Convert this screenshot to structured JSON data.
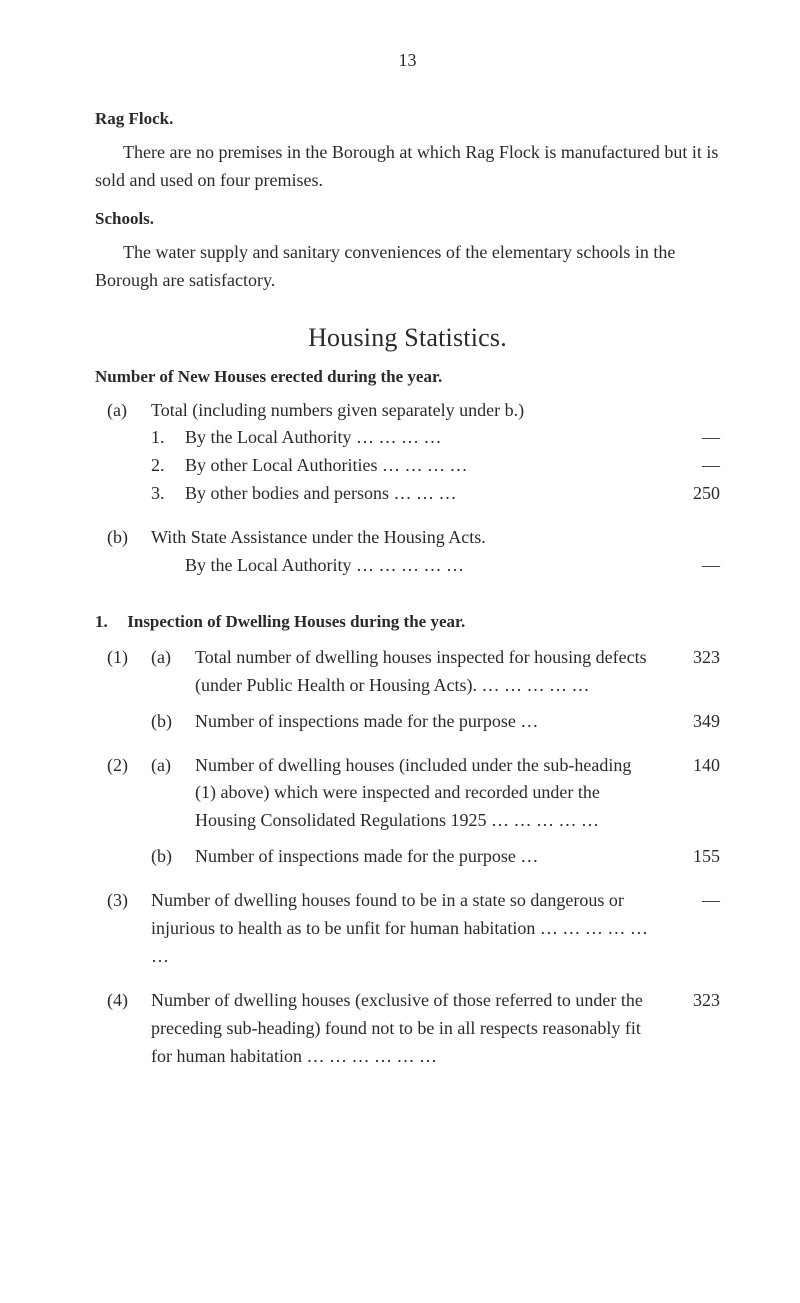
{
  "page_number": "13",
  "rag_flock": {
    "heading": "Rag Flock.",
    "para": "There are no premises in the Borough at which Rag Flock is manufactured but it is sold and used on four premises."
  },
  "schools": {
    "heading": "Schools.",
    "para": "The water supply and sanitary conveniences of the elementary schools in the Borough are satisfactory."
  },
  "statistics_title": "Housing Statistics.",
  "new_houses": {
    "heading": "Number of New Houses erected during the year.",
    "a": {
      "marker": "(a)",
      "text": "Total (including numbers given separately under b.)",
      "items": [
        {
          "marker": "1.",
          "text": "By the Local Authority   …   …   …   …",
          "value": "—"
        },
        {
          "marker": "2.",
          "text": "By other Local Authorities …   …   …   …",
          "value": "—"
        },
        {
          "marker": "3.",
          "text": "By other bodies and persons     …   …   …",
          "value": "250"
        }
      ]
    },
    "b": {
      "marker": "(b)",
      "text": "With State Assistance under the Housing Acts.",
      "line2": "By the Local Authority …   …   …   …   …",
      "value": "—"
    }
  },
  "inspection": {
    "heading_num": "1.",
    "heading": "Inspection of Dwelling Houses during the year.",
    "item1": {
      "marker": "(1)",
      "a": {
        "marker": "(a)",
        "text": "Total number of dwelling houses inspected for housing defects (under Public Health or Housing Acts).       …     …     …     …     …",
        "value": "323"
      },
      "b": {
        "marker": "(b)",
        "text": "Number of inspections made for the purpose …",
        "value": "349"
      }
    },
    "item2": {
      "marker": "(2)",
      "a": {
        "marker": "(a)",
        "text": "Number of dwelling houses (included under the sub-heading (1) above) which were inspected and recorded under the Housing Consolidated Re­gulations 1925       …     …     …     …     …",
        "value": "140"
      },
      "b": {
        "marker": "(b)",
        "text": "Number of inspections made for the purpose …",
        "value": "155"
      }
    },
    "item3": {
      "marker": "(3)",
      "text": "Number of dwelling houses found to be in a state so dangerous or injurious to health as to be unfit for human habitation …     …     …     …     …     …",
      "value": "—"
    },
    "item4": {
      "marker": "(4)",
      "text": "Number of dwelling houses (exclusive of those re­ferred to under the preceding sub-heading) found not to be in all respects reasonably fit for human habitation           …     …     …     …     …     …",
      "value": "323"
    }
  }
}
